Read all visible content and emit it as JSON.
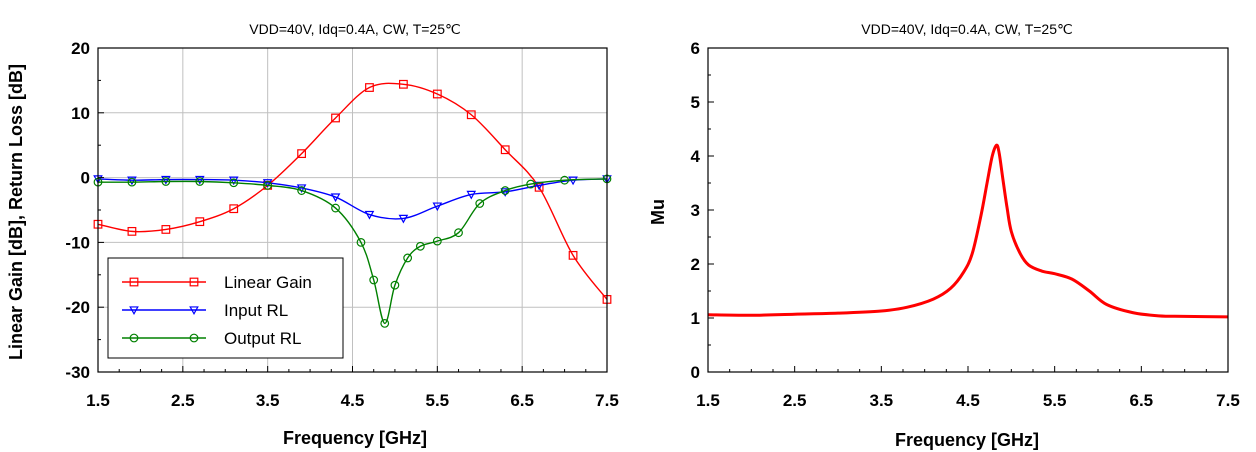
{
  "chart_data": [
    {
      "type": "line",
      "title": "VDD=40V, Idq=0.4A, CW, T=25℃",
      "xlabel": "Frequency [GHz]",
      "ylabel": "Linear Gain [dB], Return Loss [dB]",
      "xlim": [
        1.5,
        7.5
      ],
      "ylim": [
        -30,
        20
      ],
      "x_ticks": [
        "1.5",
        "2.5",
        "3.5",
        "4.5",
        "5.5",
        "6.5",
        "7.5"
      ],
      "y_ticks": [
        "20",
        "10",
        "0",
        "-10",
        "-20",
        "-30"
      ],
      "grid": true,
      "legend_position": "bottom-left",
      "series": [
        {
          "name": "Linear Gain",
          "color": "#ff0000",
          "marker": "square",
          "x": [
            1.5,
            1.9,
            2.3,
            2.7,
            3.1,
            3.5,
            3.9,
            4.3,
            4.7,
            5.1,
            5.5,
            5.9,
            6.3,
            6.7,
            7.1,
            7.5
          ],
          "y": [
            -7.2,
            -8.3,
            -8.0,
            -6.8,
            -4.8,
            -1.2,
            3.7,
            9.2,
            13.9,
            14.4,
            12.9,
            9.7,
            4.3,
            -1.5,
            -12.0,
            -18.8
          ]
        },
        {
          "name": "Input RL",
          "color": "#0000ff",
          "marker": "triangle-down",
          "x": [
            1.5,
            1.9,
            2.3,
            2.7,
            3.1,
            3.5,
            3.9,
            4.3,
            4.7,
            5.1,
            5.5,
            5.9,
            6.3,
            6.7,
            7.1,
            7.5
          ],
          "y": [
            -0.2,
            -0.4,
            -0.3,
            -0.3,
            -0.4,
            -0.8,
            -1.6,
            -3.0,
            -5.7,
            -6.3,
            -4.4,
            -2.6,
            -2.2,
            -1.2,
            -0.4,
            -0.2
          ]
        },
        {
          "name": "Output RL",
          "color": "#008000",
          "marker": "circle",
          "x": [
            1.5,
            1.9,
            2.3,
            2.7,
            3.1,
            3.5,
            3.9,
            4.3,
            4.6,
            4.75,
            4.88,
            5.0,
            5.15,
            5.3,
            5.5,
            5.75,
            6.0,
            6.3,
            6.6,
            7.0,
            7.5
          ],
          "y": [
            -0.7,
            -0.7,
            -0.6,
            -0.6,
            -0.8,
            -1.2,
            -2.0,
            -4.7,
            -10.0,
            -15.8,
            -22.5,
            -16.6,
            -12.4,
            -10.6,
            -9.8,
            -8.5,
            -4.0,
            -2.0,
            -1.0,
            -0.4,
            -0.2
          ]
        }
      ]
    },
    {
      "type": "line",
      "title": "VDD=40V, Idq=0.4A, CW, T=25℃",
      "xlabel": "Frequency [GHz]",
      "ylabel": "Mu",
      "xlim": [
        1.5,
        7.5
      ],
      "ylim": [
        0,
        6
      ],
      "x_ticks": [
        "1.5",
        "2.5",
        "3.5",
        "4.5",
        "5.5",
        "6.5",
        "7.5"
      ],
      "y_ticks": [
        "6",
        "5",
        "4",
        "3",
        "2",
        "1",
        "0"
      ],
      "grid": false,
      "series": [
        {
          "color": "#ff0000",
          "x": [
            1.5,
            2.0,
            2.5,
            3.0,
            3.5,
            3.8,
            4.1,
            4.3,
            4.45,
            4.55,
            4.65,
            4.72,
            4.78,
            4.83,
            4.86,
            4.9,
            4.95,
            5.0,
            5.1,
            5.2,
            5.35,
            5.5,
            5.7,
            5.9,
            6.1,
            6.4,
            6.7,
            7.0,
            7.5
          ],
          "y": [
            1.06,
            1.05,
            1.07,
            1.09,
            1.13,
            1.2,
            1.35,
            1.55,
            1.85,
            2.2,
            2.9,
            3.5,
            4.0,
            4.2,
            4.05,
            3.6,
            3.05,
            2.6,
            2.2,
            1.98,
            1.87,
            1.82,
            1.72,
            1.5,
            1.25,
            1.1,
            1.04,
            1.03,
            1.02
          ]
        }
      ]
    }
  ]
}
